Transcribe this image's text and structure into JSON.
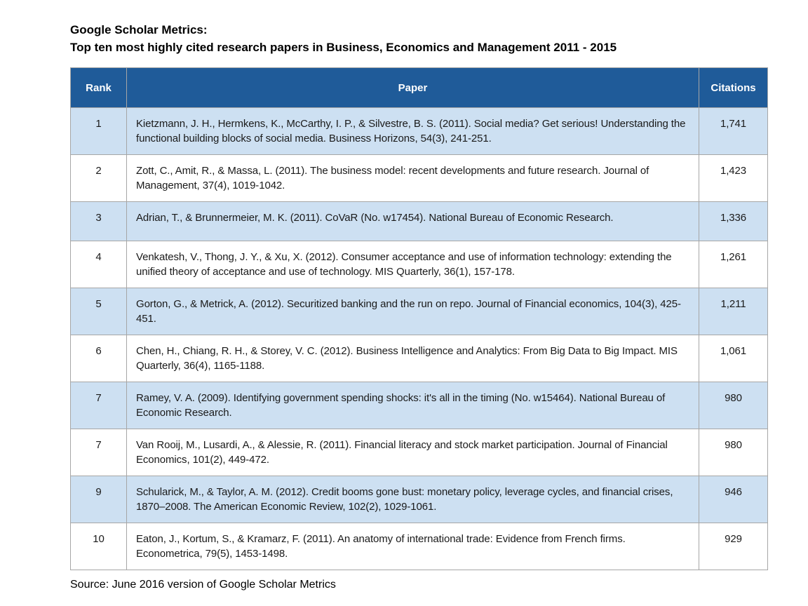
{
  "title": {
    "line1": "Google Scholar Metrics:",
    "line2": "Top ten most highly cited research papers in Business, Economics and Management 2011 - 2015"
  },
  "table": {
    "columns": [
      "Rank",
      "Paper",
      "Citations"
    ],
    "rows": [
      {
        "rank": "1",
        "paper": "Kietzmann, J. H., Hermkens, K., McCarthy, I. P., & Silvestre, B. S. (2011). Social media? Get serious! Understanding the functional building blocks of social media. Business Horizons, 54(3), 241-251.",
        "citations": "1,741"
      },
      {
        "rank": "2",
        "paper": "Zott, C., Amit, R., & Massa, L. (2011). The business model: recent developments and future research. Journal of Management, 37(4), 1019-1042.",
        "citations": "1,423"
      },
      {
        "rank": "3",
        "paper": "Adrian, T., & Brunnermeier, M. K. (2011). CoVaR (No. w17454). National Bureau of Economic Research.",
        "citations": "1,336"
      },
      {
        "rank": "4",
        "paper": "Venkatesh, V., Thong, J. Y., & Xu, X. (2012). Consumer acceptance and use of information technology: extending the unified theory of acceptance and use of technology. MIS Quarterly, 36(1), 157-178.",
        "citations": "1,261"
      },
      {
        "rank": "5",
        "paper": "Gorton, G., & Metrick, A. (2012). Securitized banking and the run on repo. Journal of Financial economics, 104(3), 425-451.",
        "citations": "1,211"
      },
      {
        "rank": "6",
        "paper": "Chen, H., Chiang, R. H., & Storey, V. C. (2012). Business Intelligence and Analytics: From Big Data to Big Impact. MIS Quarterly, 36(4), 1165-1188.",
        "citations": "1,061"
      },
      {
        "rank": "7",
        "paper": "Ramey, V. A. (2009). Identifying government spending shocks: it's all in the timing (No. w15464). National Bureau of Economic Research.",
        "citations": "980"
      },
      {
        "rank": "7",
        "paper": "Van Rooij, M., Lusardi, A., & Alessie, R. (2011). Financial literacy and stock market participation. Journal of Financial Economics, 101(2), 449-472.",
        "citations": "980"
      },
      {
        "rank": "9",
        "paper": "Schularick, M., & Taylor, A. M. (2012). Credit booms gone bust: monetary policy, leverage cycles, and financial crises, 1870–2008. The American Economic Review, 102(2), 1029-1061.",
        "citations": "946"
      },
      {
        "rank": "10",
        "paper": "Eaton, J., Kortum, S., & Kramarz, F. (2011). An anatomy of international trade: Evidence from French firms. Econometrica, 79(5), 1453-1498.",
        "citations": "929"
      }
    ]
  },
  "source": "Source: June 2016 version of Google Scholar Metrics",
  "colors": {
    "header_bg": "#1F5B99",
    "header_text": "#FFFFFF",
    "row_alt_bg": "#CDE0F2",
    "row_bg": "#FFFFFF",
    "border": "#A6A6A6"
  }
}
